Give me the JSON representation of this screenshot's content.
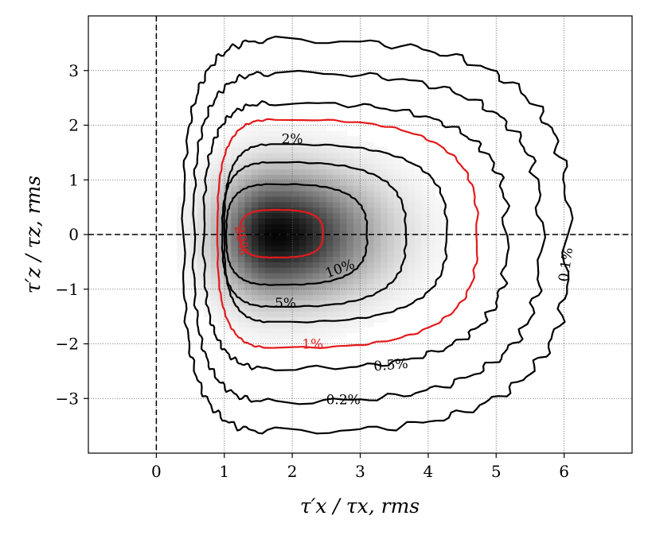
{
  "chart_data": {
    "type": "contour",
    "xlabel": "τ′x / τx, rms",
    "ylabel": "τ′z / τz, rms",
    "xlim": [
      -1,
      7
    ],
    "ylim": [
      -4,
      4
    ],
    "xticks": [
      0,
      1,
      2,
      3,
      4,
      5,
      6
    ],
    "yticks": [
      -3,
      -2,
      -1,
      0,
      1,
      2,
      3
    ],
    "x_tick_labels": [
      "0",
      "1",
      "2",
      "3",
      "4",
      "5",
      "6"
    ],
    "y_tick_labels": [
      "−3",
      "−2",
      "−1",
      "0",
      "1",
      "2",
      "3"
    ],
    "grid": true,
    "reference_lines": {
      "x": 0,
      "y": 0,
      "style": "dashed"
    },
    "density_peak": {
      "x": 1.75,
      "y": 0.0
    },
    "colors": {
      "black_contours": "#000000",
      "highlight_contours": "#e31a1c",
      "density": "grayscale"
    },
    "contours": [
      {
        "level": "0.1%",
        "label": "0.1%",
        "color": "#000000",
        "x_range": [
          0.4,
          6.05
        ],
        "y_range": [
          -3.6,
          3.55
        ],
        "label_at": [
          6.02,
          -0.55
        ],
        "label_rotation": -82
      },
      {
        "level": "0.2%",
        "label": "0.2%",
        "color": "#000000",
        "x_range": [
          0.55,
          5.65
        ],
        "y_range": [
          -3.05,
          2.95
        ],
        "label_at": [
          2.75,
          -3.02
        ],
        "label_rotation": 0
      },
      {
        "level": "0.5%",
        "label": "0.5%",
        "color": "#000000",
        "x_range": [
          0.7,
          5.15
        ],
        "y_range": [
          -2.45,
          2.4
        ],
        "label_at": [
          3.45,
          -2.38
        ],
        "label_rotation": -5
      },
      {
        "level": "1%",
        "label": "1%",
        "color": "#e31a1c",
        "x_range": [
          0.9,
          4.72
        ],
        "y_range": [
          -2.07,
          2.1
        ],
        "label_at": [
          2.3,
          -2.0
        ],
        "label_rotation": 0
      },
      {
        "level": "2%",
        "label": "2%",
        "color": "#000000",
        "x_range": [
          1.0,
          4.27
        ],
        "y_range": [
          -1.6,
          1.65
        ],
        "label_at": [
          2.0,
          1.75
        ],
        "label_rotation": 0
      },
      {
        "level": "5%",
        "label": "5%",
        "color": "#000000",
        "x_range": [
          0.97,
          3.67
        ],
        "y_range": [
          -1.32,
          1.32
        ],
        "label_at": [
          1.9,
          -1.25
        ],
        "label_rotation": 0
      },
      {
        "level": "10%",
        "label": "10%",
        "color": "#000000",
        "x_range": [
          1.03,
          3.1
        ],
        "y_range": [
          -0.92,
          0.92
        ],
        "label_at": [
          2.7,
          -0.62
        ],
        "label_rotation": -20
      },
      {
        "level": "20%",
        "label": "20%",
        "color": "#e31a1c",
        "x_range": [
          1.23,
          2.45
        ],
        "y_range": [
          -0.42,
          0.45
        ],
        "label_at": [
          1.26,
          -0.1
        ],
        "label_rotation": 80
      }
    ]
  }
}
